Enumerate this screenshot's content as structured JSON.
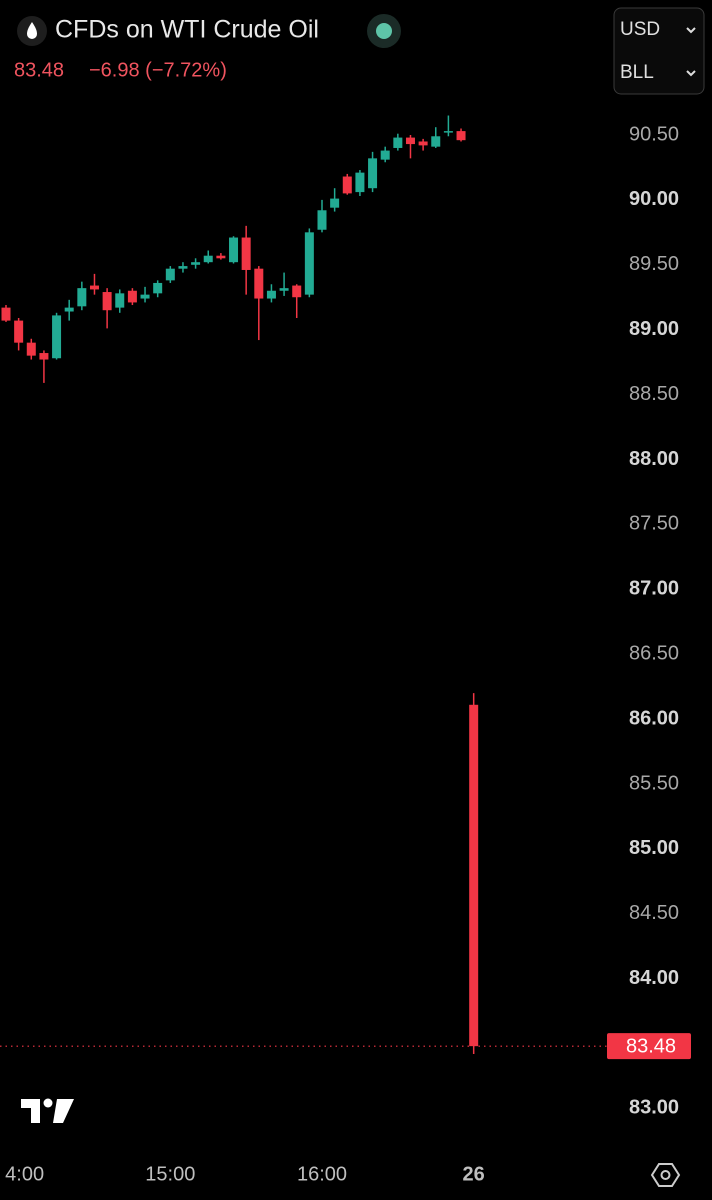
{
  "header": {
    "title": "CFDs on WTI Crude Oil",
    "last": "83.48",
    "change": "−6.98 (−7.72%)",
    "currency": "USD",
    "unit": "BLL"
  },
  "chart_data": {
    "type": "candlestick",
    "up_color": "#22ab94",
    "down_color": "#f23645",
    "categories": [
      null,
      "4:00",
      null,
      null,
      null,
      null,
      null,
      null,
      null,
      null,
      null,
      null,
      null,
      "15:00",
      null,
      null,
      null,
      null,
      null,
      null,
      null,
      null,
      null,
      null,
      null,
      "16:00",
      null,
      null,
      null,
      null,
      null,
      null,
      null,
      null,
      null,
      null,
      null,
      "26"
    ],
    "open": [
      89.17,
      89.07,
      88.9,
      88.82,
      88.78,
      89.14,
      89.18,
      89.34,
      89.29,
      89.17,
      89.3,
      89.24,
      89.28,
      89.38,
      89.47,
      89.5,
      89.52,
      89.57,
      89.52,
      89.71,
      89.47,
      89.24,
      89.3,
      89.34,
      89.27,
      89.77,
      89.94,
      90.18,
      90.06,
      90.09,
      90.31,
      90.4,
      90.48,
      90.45,
      90.41,
      90.52,
      90.53,
      86.11
    ],
    "high": [
      89.19,
      89.09,
      88.93,
      88.84,
      89.13,
      89.23,
      89.37,
      89.43,
      89.32,
      89.31,
      89.32,
      89.33,
      89.38,
      89.49,
      89.52,
      89.55,
      89.61,
      89.59,
      89.72,
      89.8,
      89.49,
      89.35,
      89.44,
      89.35,
      89.78,
      90.0,
      90.09,
      90.2,
      90.23,
      90.37,
      90.41,
      90.51,
      90.5,
      90.47,
      90.56,
      90.65,
      90.55,
      86.2
    ],
    "low": [
      89.06,
      88.84,
      88.77,
      88.59,
      88.77,
      89.07,
      89.15,
      89.27,
      89.01,
      89.13,
      89.19,
      89.21,
      89.25,
      89.36,
      89.44,
      89.47,
      89.51,
      89.54,
      89.51,
      89.27,
      88.92,
      89.21,
      89.26,
      89.09,
      89.25,
      89.75,
      89.91,
      90.04,
      90.03,
      90.06,
      90.29,
      90.38,
      90.32,
      90.38,
      90.4,
      90.49,
      90.45,
      83.42
    ],
    "close": [
      89.07,
      88.9,
      88.8,
      88.77,
      89.11,
      89.17,
      89.32,
      89.31,
      89.15,
      89.28,
      89.21,
      89.27,
      89.36,
      89.47,
      89.49,
      89.52,
      89.57,
      89.55,
      89.71,
      89.46,
      89.24,
      89.3,
      89.32,
      89.25,
      89.75,
      89.92,
      90.01,
      90.05,
      90.21,
      90.32,
      90.38,
      90.48,
      90.43,
      90.42,
      90.49,
      90.53,
      90.46,
      83.48
    ],
    "ylim": [
      82.68,
      91.54
    ],
    "yticks": [
      {
        "value": 83,
        "label": "83.00"
      },
      {
        "value": 83.5,
        "label": "83.50"
      },
      {
        "value": 84,
        "label": "84.00"
      },
      {
        "value": 84.5,
        "label": "84.50"
      },
      {
        "value": 85,
        "label": "85.00"
      },
      {
        "value": 85.5,
        "label": "85.50"
      },
      {
        "value": 86,
        "label": "86.00"
      },
      {
        "value": 86.5,
        "label": "86.50"
      },
      {
        "value": 87,
        "label": "87.00"
      },
      {
        "value": 87.5,
        "label": "87.50"
      },
      {
        "value": 88,
        "label": "88.00"
      },
      {
        "value": 88.5,
        "label": "88.50"
      },
      {
        "value": 89,
        "label": "89.00"
      },
      {
        "value": 89.5,
        "label": "89.50"
      },
      {
        "value": 90,
        "label": "90.00"
      },
      {
        "value": 90.5,
        "label": "90.50"
      }
    ],
    "last_price": {
      "value": 83.48,
      "label": "83.48"
    }
  }
}
